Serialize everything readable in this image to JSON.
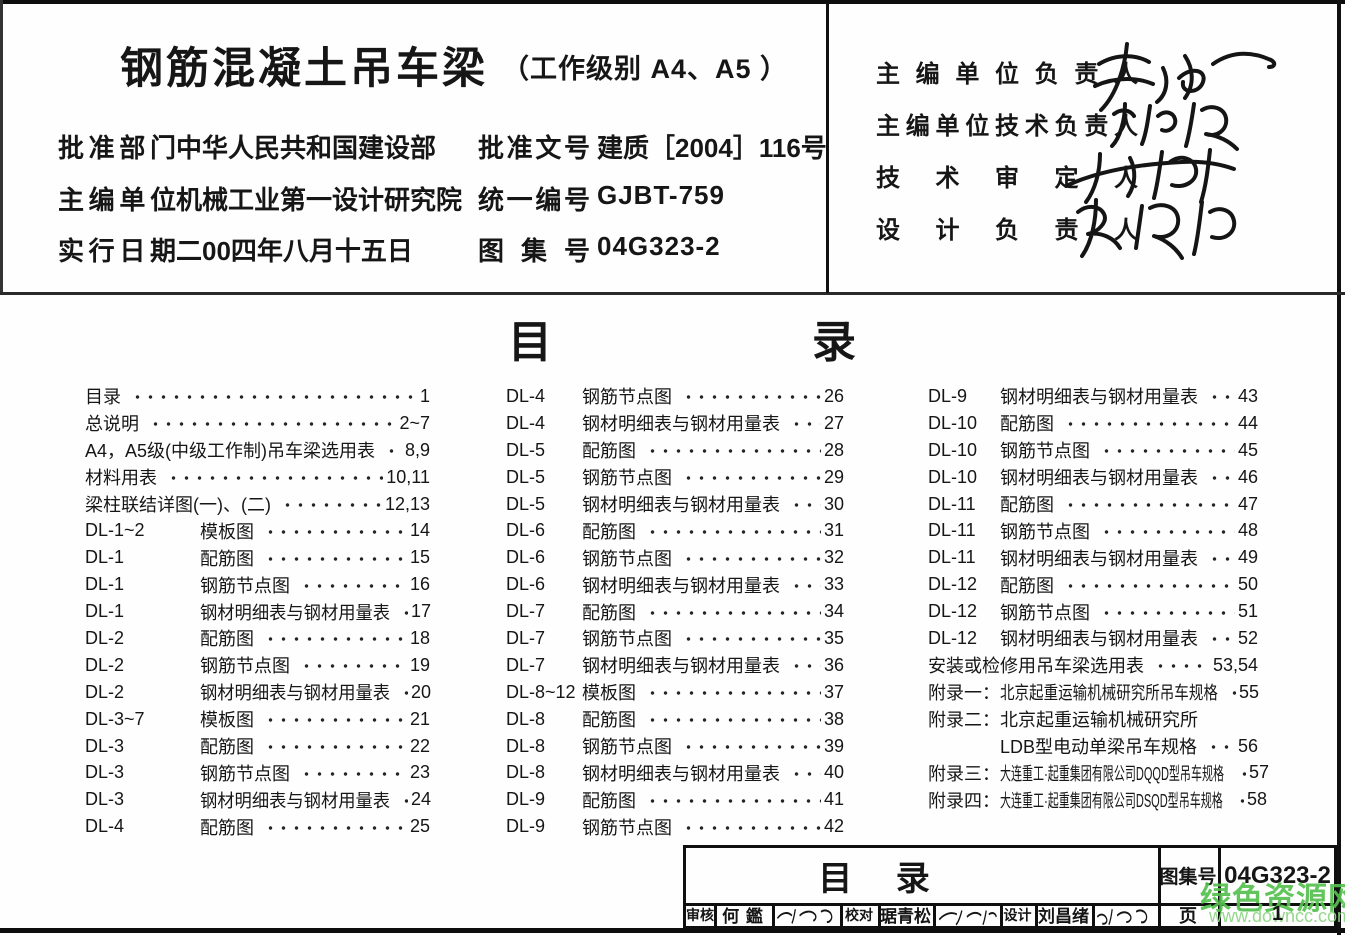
{
  "header": {
    "title": "钢筋混凝土吊车梁",
    "title_suffix": "（工作级别 A4、A5 ）",
    "rows": [
      {
        "label": "批准部门",
        "value": "中华人民共和国建设部",
        "label2": "批准文号",
        "value2": "建质［2004］116号"
      },
      {
        "label": "主编单位",
        "value": "机械工业第一设计研究院",
        "label2": "统一编号",
        "value2": "GJBT-759"
      },
      {
        "label": "实行日期",
        "value": "二00四年八月十五日",
        "label2": "图 集 号",
        "value2": "04G323-2"
      }
    ]
  },
  "signatures": {
    "labels": [
      "主编单位负责人",
      "主编单位技术负责人",
      "技术审定人",
      "设计负责人"
    ]
  },
  "toc": {
    "heading": [
      "目",
      "录"
    ],
    "columns": [
      {
        "entries": [
          {
            "code": "",
            "title": "目录",
            "page": "1"
          },
          {
            "code": "",
            "title": "总说明",
            "page": "2~7"
          },
          {
            "code": "",
            "title": "A4，A5级(中级工作制)吊车梁选用表",
            "page": "8,9"
          },
          {
            "code": "",
            "title": "材料用表",
            "page": "10,11"
          },
          {
            "code": "",
            "title": "梁柱联结详图(一)、(二)",
            "page": "12,13"
          },
          {
            "code": "DL-1~2",
            "title": "模板图",
            "page": "14"
          },
          {
            "code": "DL-1",
            "title": "配筋图",
            "page": "15"
          },
          {
            "code": "DL-1",
            "title": "钢筋节点图",
            "page": "16"
          },
          {
            "code": "DL-1",
            "title": "钢材明细表与钢材用量表",
            "page": "17"
          },
          {
            "code": "DL-2",
            "title": "配筋图",
            "page": "18"
          },
          {
            "code": "DL-2",
            "title": "钢筋节点图",
            "page": "19"
          },
          {
            "code": "DL-2",
            "title": "钢材明细表与钢材用量表",
            "page": "20"
          },
          {
            "code": "DL-3~7",
            "title": "模板图",
            "page": "21"
          },
          {
            "code": "DL-3",
            "title": "配筋图",
            "page": "22"
          },
          {
            "code": "DL-3",
            "title": "钢筋节点图",
            "page": "23"
          },
          {
            "code": "DL-3",
            "title": "钢材明细表与钢材用量表",
            "page": "24"
          },
          {
            "code": "DL-4",
            "title": "配筋图",
            "page": "25"
          }
        ]
      },
      {
        "entries": [
          {
            "code": "DL-4",
            "title": "钢筋节点图",
            "page": "26"
          },
          {
            "code": "DL-4",
            "title": "钢材明细表与钢材用量表",
            "page": "27"
          },
          {
            "code": "DL-5",
            "title": "配筋图",
            "page": "28"
          },
          {
            "code": "DL-5",
            "title": "钢筋节点图",
            "page": "29"
          },
          {
            "code": "DL-5",
            "title": "钢材明细表与钢材用量表",
            "page": "30"
          },
          {
            "code": "DL-6",
            "title": "配筋图",
            "page": "31"
          },
          {
            "code": "DL-6",
            "title": "钢筋节点图",
            "page": "32"
          },
          {
            "code": "DL-6",
            "title": "钢材明细表与钢材用量表",
            "page": "33"
          },
          {
            "code": "DL-7",
            "title": "配筋图",
            "page": "34"
          },
          {
            "code": "DL-7",
            "title": "钢筋节点图",
            "page": "35"
          },
          {
            "code": "DL-7",
            "title": "钢材明细表与钢材用量表",
            "page": "36"
          },
          {
            "code": "DL-8~12",
            "title": "模板图",
            "page": "37"
          },
          {
            "code": "DL-8",
            "title": "配筋图",
            "page": "38"
          },
          {
            "code": "DL-8",
            "title": "钢筋节点图",
            "page": "39"
          },
          {
            "code": "DL-8",
            "title": "钢材明细表与钢材用量表",
            "page": "40"
          },
          {
            "code": "DL-9",
            "title": "配筋图",
            "page": "41"
          },
          {
            "code": "DL-9",
            "title": "钢筋节点图",
            "page": "42"
          }
        ]
      },
      {
        "entries": [
          {
            "code": "DL-9",
            "title": "钢材明细表与钢材用量表",
            "page": "43"
          },
          {
            "code": "DL-10",
            "title": "配筋图",
            "page": "44"
          },
          {
            "code": "DL-10",
            "title": "钢筋节点图",
            "page": "45"
          },
          {
            "code": "DL-10",
            "title": "钢材明细表与钢材用量表",
            "page": "46"
          },
          {
            "code": "DL-11",
            "title": "配筋图",
            "page": "47"
          },
          {
            "code": "DL-11",
            "title": "钢筋节点图",
            "page": "48"
          },
          {
            "code": "DL-11",
            "title": "钢材明细表与钢材用量表",
            "page": "49"
          },
          {
            "code": "DL-12",
            "title": "配筋图",
            "page": "50"
          },
          {
            "code": "DL-12",
            "title": "钢筋节点图",
            "page": "51"
          },
          {
            "code": "DL-12",
            "title": "钢材明细表与钢材用量表",
            "page": "52"
          },
          {
            "code": "",
            "title": "安装或检修用吊车梁选用表",
            "page": "53,54"
          },
          {
            "code": "附录一：",
            "title": "北京起重运输机械研究所吊车规格",
            "page": "55"
          },
          {
            "code": "附录二：",
            "title": "北京起重运输机械研究所",
            "page": "",
            "no_leader": true
          },
          {
            "code": "",
            "title": "LDB型电动单梁吊车规格",
            "page": "56",
            "indent": true
          },
          {
            "code": "附录三：",
            "title": "大连重工·起重集团有限公司DQQD型吊车规格",
            "page": "57"
          },
          {
            "code": "附录四：",
            "title": "大连重工·起重集团有限公司DSQD型吊车规格",
            "page": "58"
          }
        ]
      }
    ]
  },
  "titleblock": {
    "title": "目 录",
    "atlas_label": "图集号",
    "atlas_no": "04G323-2",
    "review_label": "审核",
    "reviewer": "何 鑑",
    "check_label": "校对",
    "checker": "琚青松",
    "design_label": "设计",
    "designer": "刘昌绪",
    "page_label": "页",
    "page_no": "1"
  },
  "watermark": {
    "site": "绿色资源网",
    "url": "www.downcc.com",
    "site_color": "#55c14f",
    "url_color": "#8fd687"
  }
}
